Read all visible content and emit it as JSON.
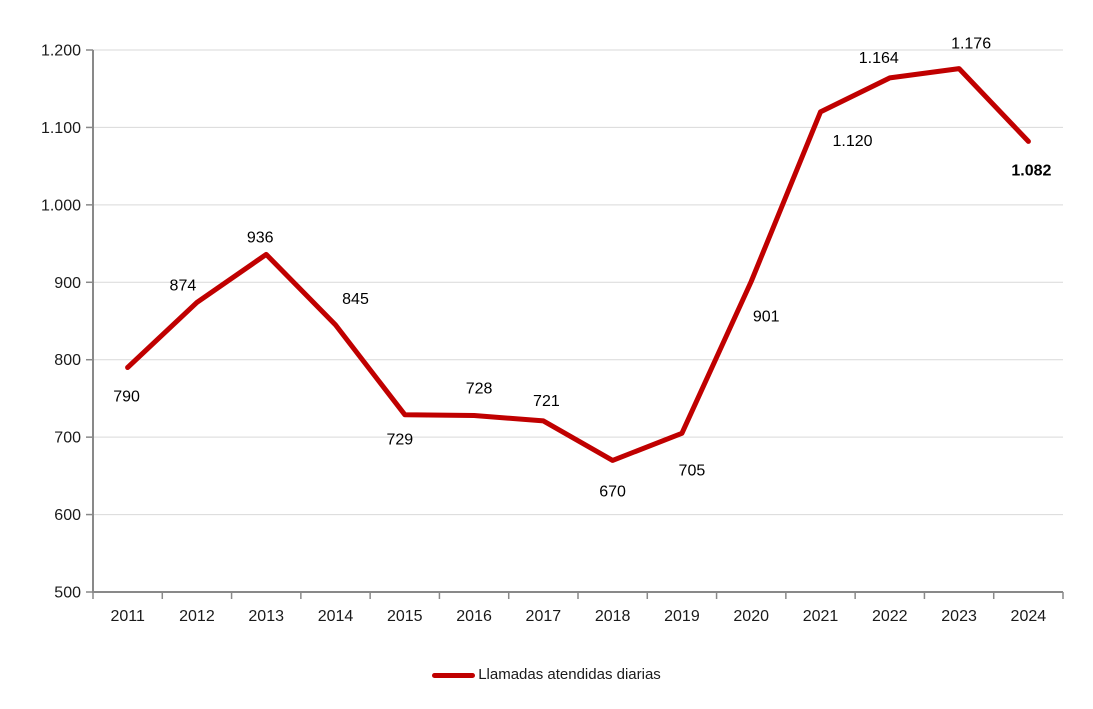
{
  "chart_data": {
    "type": "line",
    "title": "",
    "xlabel": "",
    "ylabel": "",
    "categories": [
      "2011",
      "2012",
      "2013",
      "2014",
      "2015",
      "2016",
      "2017",
      "2018",
      "2019",
      "2020",
      "2021",
      "2022",
      "2023",
      "2024"
    ],
    "series": [
      {
        "name": "Llamadas atendidas diarias",
        "color": "#C00000",
        "values": [
          790,
          874,
          936,
          845,
          729,
          728,
          721,
          670,
          705,
          901,
          1120,
          1164,
          1176,
          1082
        ],
        "value_labels": [
          "790",
          "874",
          "936",
          "845",
          "729",
          "728",
          "721",
          "670",
          "705",
          "901",
          "1.120",
          "1.164",
          "1.176",
          "1.082"
        ],
        "label_offsets": [
          [
            -1,
            34
          ],
          [
            -14,
            -12
          ],
          [
            -6,
            -12
          ],
          [
            20,
            -21
          ],
          [
            -5,
            30
          ],
          [
            5,
            -22
          ],
          [
            3,
            -15
          ],
          [
            0,
            36
          ],
          [
            10,
            42
          ],
          [
            15,
            40
          ],
          [
            32,
            34
          ],
          [
            -11,
            -15
          ],
          [
            12,
            -20
          ],
          [
            3,
            34
          ]
        ],
        "emphasized_label_index": 13
      }
    ],
    "ylim": [
      500,
      1200
    ],
    "ytick_step": 100,
    "ytick_labels": [
      "500",
      "600",
      "700",
      "800",
      "900",
      "1.000",
      "1.100",
      "1.200"
    ],
    "grid": true,
    "legend_position": "bottom",
    "line_width": 5,
    "colors": {
      "line": "#C00000",
      "gridline": "#D9D9D9",
      "axis": "#898989",
      "tick_label": "#1a1a1a",
      "data_label": "#000000",
      "background": "#FFFFFF"
    }
  }
}
